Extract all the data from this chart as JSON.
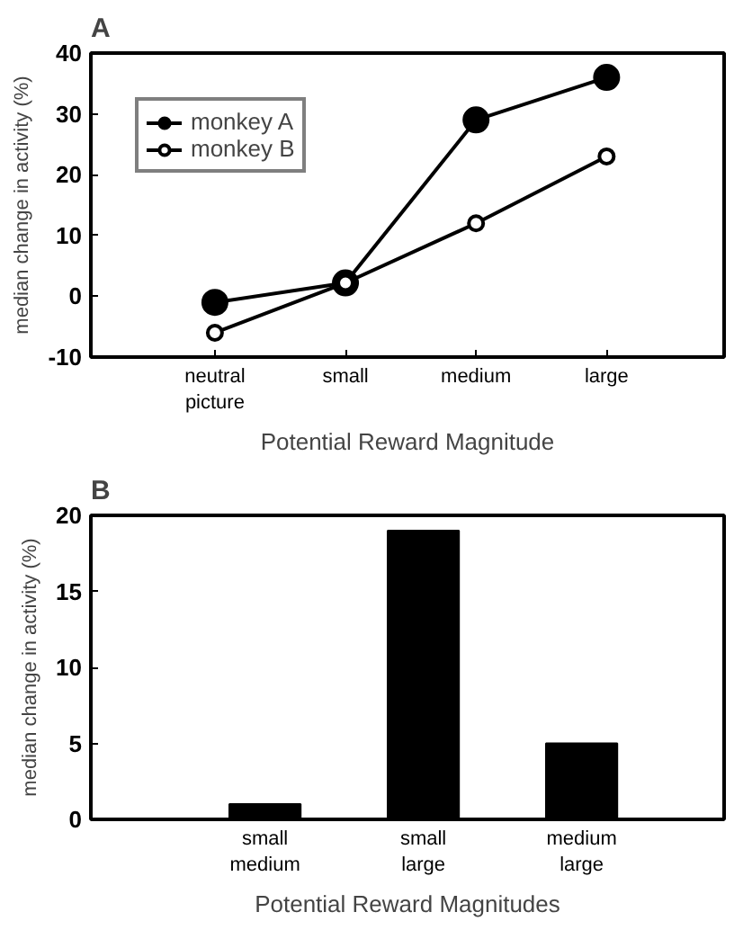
{
  "chart_data": [
    {
      "type": "line",
      "title": "A",
      "categories": [
        "neutral\npicture",
        "small",
        "medium",
        "large"
      ],
      "xlabel": "Potential Reward Magnitude",
      "ylabel": "median change in activity (%)",
      "ylim": [
        -10,
        40
      ],
      "yticks": [
        -10,
        0,
        10,
        20,
        30,
        40
      ],
      "grid": false,
      "legend": "top left",
      "marker": "circle",
      "line_style": "solid",
      "series": [
        {
          "name": "monkey A",
          "color": "#000000",
          "values": [
            -1,
            2.2,
            29,
            36
          ]
        },
        {
          "name": "monkey B",
          "color": "#000000",
          "values": [
            -6,
            2.2,
            12,
            23
          ]
        }
      ]
    },
    {
      "type": "bar",
      "title": "B",
      "categories": [
        "small\nmedium",
        "small\nlarge",
        "medium\nlarge"
      ],
      "xlabel": "Potential Reward Magnitudes",
      "ylabel": "median change in activity (%)",
      "ylim": [
        0,
        20
      ],
      "yticks": [
        0,
        5,
        10,
        15,
        20
      ],
      "grid": false,
      "series": [
        {
          "color": "#000000",
          "values": [
            1,
            19,
            5
          ]
        }
      ]
    }
  ]
}
